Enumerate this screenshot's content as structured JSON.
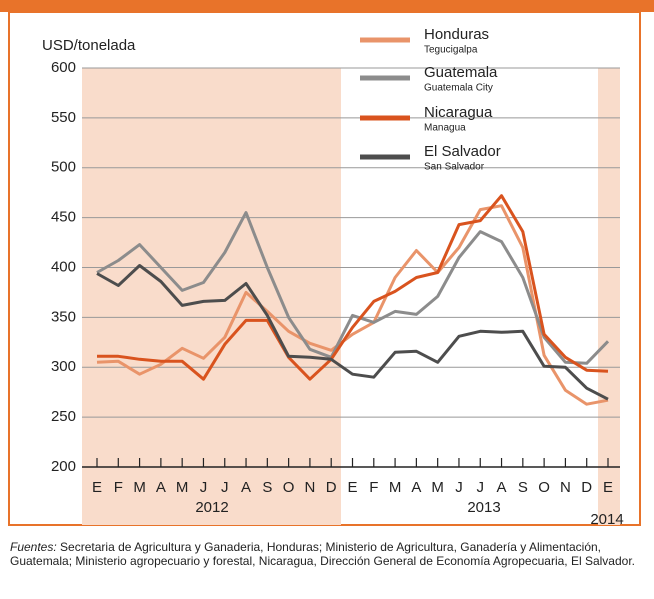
{
  "chart_data": {
    "type": "line",
    "y_axis_label": "USD/tonelada",
    "categories": [
      "E",
      "F",
      "M",
      "A",
      "M",
      "J",
      "J",
      "A",
      "S",
      "O",
      "N",
      "D",
      "E",
      "F",
      "M",
      "A",
      "M",
      "J",
      "J",
      "A",
      "S",
      "O",
      "N",
      "D",
      "E"
    ],
    "year_labels": [
      "2012",
      "2013",
      "2014"
    ],
    "ylim": [
      200,
      600
    ],
    "yticks": [
      200,
      250,
      300,
      350,
      400,
      450,
      500,
      550,
      600
    ],
    "grid": true,
    "series": [
      {
        "name": "Honduras",
        "city": "Tegucigalpa",
        "color": "#e9946a",
        "values": [
          305,
          306,
          293,
          303,
          319,
          309,
          330,
          375,
          356,
          336,
          324,
          317,
          333,
          345,
          390,
          417,
          395,
          420,
          458,
          462,
          420,
          312,
          277,
          263,
          267
        ]
      },
      {
        "name": "Guatemala",
        "city": "Guatemala City",
        "color": "#8c8c8c",
        "values": [
          395,
          407,
          423,
          400,
          377,
          385,
          415,
          455,
          400,
          350,
          318,
          310,
          352,
          345,
          356,
          353,
          371,
          410,
          436,
          426,
          390,
          330,
          305,
          304,
          326
        ]
      },
      {
        "name": "Nicaragua",
        "city": "Managua",
        "color": "#d9531e",
        "values": [
          311,
          311,
          308,
          306,
          306,
          288,
          323,
          347,
          347,
          310,
          288,
          308,
          340,
          366,
          376,
          390,
          395,
          443,
          447,
          472,
          436,
          333,
          310,
          297,
          296
        ]
      },
      {
        "name": "El Salvador",
        "city": "San Salvador",
        "color": "#4d4d4d",
        "values": [
          394,
          382,
          402,
          386,
          362,
          366,
          367,
          384,
          352,
          311,
          310,
          308,
          293,
          290,
          315,
          316,
          305,
          331,
          336,
          335,
          336,
          301,
          300,
          279,
          268
        ]
      }
    ],
    "source_label": "Fuentes:",
    "source": "Secretaria de Agricultura y Ganaderia, Honduras; Ministerio de Agricultura, Ganadería y Alimentación, Guatemala; Ministerio agropecuario y forestal, Nicaragua, Dirección General de Economía Agropecuaria, El Salvador."
  }
}
